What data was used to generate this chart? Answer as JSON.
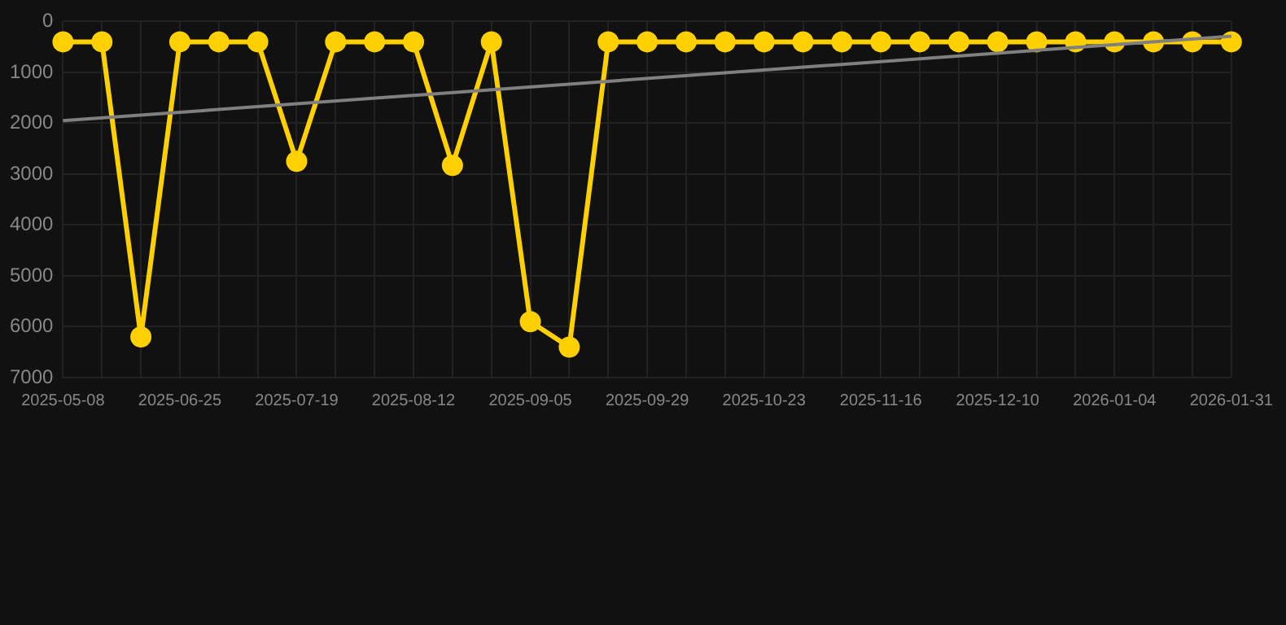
{
  "chart_data": {
    "type": "line",
    "categories": [
      "2025-05-08",
      null,
      null,
      "2025-06-25",
      null,
      null,
      "2025-07-19",
      null,
      null,
      "2025-08-12",
      null,
      null,
      "2025-09-05",
      null,
      null,
      "2025-09-29",
      null,
      null,
      "2025-10-23",
      null,
      null,
      "2025-11-16",
      null,
      null,
      "2025-12-10",
      null,
      null,
      "2026-01-04",
      null,
      null,
      "2026-01-31"
    ],
    "series": [
      {
        "color": "#ffd000",
        "marker": "circle",
        "values": [
          400,
          400,
          6200,
          400,
          400,
          400,
          2750,
          400,
          400,
          400,
          2830,
          400,
          5900,
          6400,
          400,
          400,
          400,
          400,
          400,
          400,
          400,
          400,
          400,
          400,
          400,
          400,
          400,
          400,
          400,
          400,
          400
        ]
      },
      {
        "type": "line",
        "color": "#808080",
        "marker": "none",
        "values": [
          1950,
          null,
          null,
          null,
          null,
          null,
          null,
          null,
          null,
          null,
          null,
          null,
          null,
          null,
          null,
          null,
          null,
          null,
          null,
          null,
          null,
          null,
          null,
          null,
          null,
          null,
          null,
          null,
          null,
          null,
          290
        ]
      }
    ],
    "ylim": [
      7000,
      0
    ],
    "yticks": [
      0,
      1000,
      2000,
      3000,
      4000,
      5000,
      6000,
      7000
    ],
    "grid": true,
    "legend": false
  }
}
